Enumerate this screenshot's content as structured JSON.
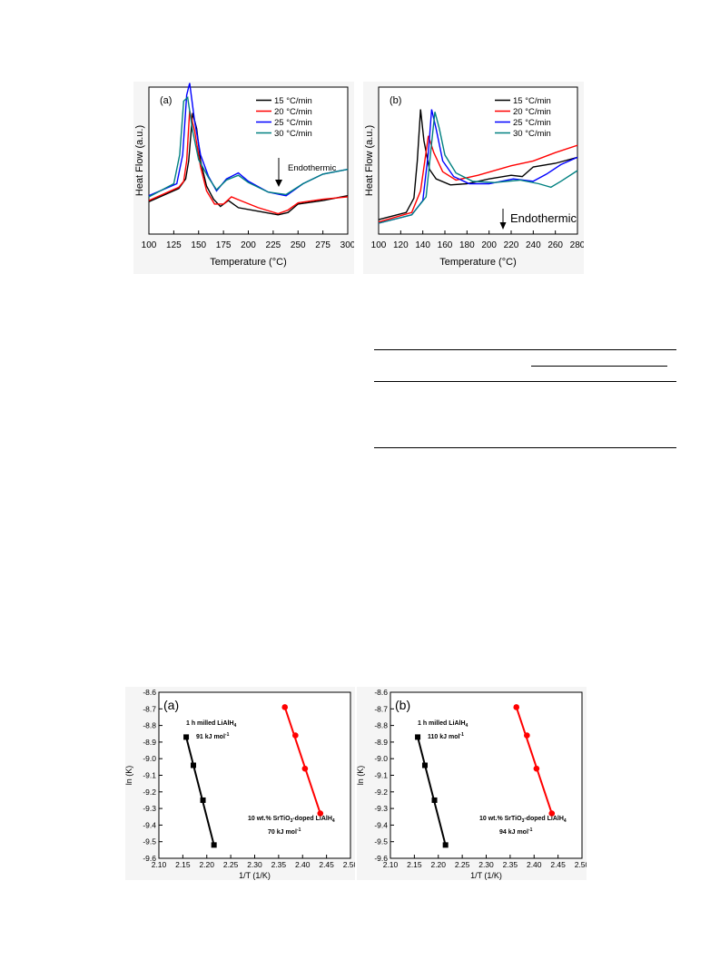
{
  "figure_dsc": {
    "panels": [
      {
        "id": "a",
        "label": "(a)",
        "xlabel": "Temperature (°C)",
        "ylabel": "Heat Flow (a.u.)",
        "annotation": "Endothermic",
        "xticks": [
          "100",
          "125",
          "150",
          "175",
          "200",
          "225",
          "250",
          "275",
          "300"
        ],
        "xlim": [
          100,
          300
        ],
        "legend": [
          "15 °C/min",
          "20 °C/min",
          "25 °C/min",
          "30 °C/min"
        ]
      },
      {
        "id": "b",
        "label": "(b)",
        "xlabel": "Temperature (°C)",
        "ylabel": "Heat Flow (a.u.)",
        "annotation": "Endothermic",
        "xticks": [
          "100",
          "120",
          "140",
          "160",
          "180",
          "200",
          "220",
          "240",
          "260",
          "280"
        ],
        "xlim": [
          100,
          280
        ],
        "legend": [
          "15 °C/min",
          "20 °C/min",
          "25 °C/min",
          "30 °C/min"
        ]
      }
    ]
  },
  "figure_kissinger": {
    "panels": [
      {
        "id": "a",
        "label": "(a)",
        "xlabel": "1/T (1/K)",
        "ylabel": "ln (K)",
        "xticks": [
          "2.10",
          "2.15",
          "2.20",
          "2.25",
          "2.30",
          "2.35",
          "2.40",
          "2.45",
          "2.50"
        ],
        "yticks": [
          "-8.6",
          "-8.7",
          "-8.8",
          "-8.9",
          "-9.0",
          "-9.1",
          "-9.2",
          "-9.3",
          "-9.4",
          "-9.5",
          "-9.6"
        ],
        "text_upper_1": "1 h milled LiAlH",
        "text_upper_sub": "4",
        "text_upper_2": "91 kJ mol",
        "text_upper_sup": "-1",
        "text_lower_1a": "10 wt.% SrTiO",
        "text_lower_sub1": "3",
        "text_lower_1b": "-doped LiAlH",
        "text_lower_sub2": "4",
        "text_lower_2": "70 kJ mol",
        "text_lower_sup": "-1"
      },
      {
        "id": "b",
        "label": "(b)",
        "xlabel": "1/T (1/K)",
        "ylabel": "ln (K)",
        "xticks": [
          "2.10",
          "2.15",
          "2.20",
          "2.25",
          "2.30",
          "2.35",
          "2.40",
          "2.45",
          "2.50"
        ],
        "yticks": [
          "-8.6",
          "-8.7",
          "-8.8",
          "-8.9",
          "-9.0",
          "-9.1",
          "-9.2",
          "-9.3",
          "-9.4",
          "-9.5",
          "-9.6"
        ],
        "text_upper_1": "1 h milled LiAlH",
        "text_upper_sub": "4",
        "text_upper_2": "110 kJ mol",
        "text_upper_sup": "-1",
        "text_lower_1a": "10 wt.% SrTiO",
        "text_lower_sub1": "3",
        "text_lower_1b": "-doped LiAlH",
        "text_lower_sub2": "4",
        "text_lower_2": "94 kJ mol",
        "text_lower_sup": "-1"
      }
    ]
  },
  "chart_data": [
    {
      "type": "scatter",
      "title": "",
      "xlabel": "1/T (1/K)",
      "ylabel": "ln (K)",
      "xlim": [
        2.1,
        2.5
      ],
      "ylim": [
        -9.6,
        -8.6
      ],
      "series": [
        {
          "name": "1 h milled LiAlH4",
          "color": "#000000",
          "marker": "square",
          "points": [
            [
              2.157,
              -8.87
            ],
            [
              2.172,
              -9.04
            ],
            [
              2.192,
              -9.25
            ],
            [
              2.215,
              -9.52
            ]
          ]
        },
        {
          "name": "10 wt.% SrTiO3-doped LiAlH4",
          "color": "#ff0000",
          "marker": "circle",
          "points": [
            [
              2.363,
              -8.69
            ],
            [
              2.385,
              -8.86
            ],
            [
              2.405,
              -9.06
            ],
            [
              2.437,
              -9.33
            ]
          ]
        }
      ]
    },
    {
      "type": "scatter",
      "title": "",
      "xlabel": "1/T (1/K)",
      "ylabel": "ln (K)",
      "xlim": [
        2.1,
        2.5
      ],
      "ylim": [
        -9.6,
        -8.6
      ],
      "series": [
        {
          "name": "1 h milled LiAlH4",
          "color": "#000000",
          "marker": "square",
          "points": [
            [
              2.157,
              -8.87
            ],
            [
              2.172,
              -9.04
            ],
            [
              2.192,
              -9.25
            ],
            [
              2.215,
              -9.52
            ]
          ]
        },
        {
          "name": "10 wt.% SrTiO3-doped LiAlH4",
          "color": "#ff0000",
          "marker": "circle",
          "points": [
            [
              2.363,
              -8.69
            ],
            [
              2.385,
              -8.86
            ],
            [
              2.405,
              -9.06
            ],
            [
              2.437,
              -9.33
            ]
          ]
        }
      ]
    },
    {
      "type": "line",
      "title": "",
      "xlabel": "Temperature (°C)",
      "ylabel": "Heat Flow (a.u.)",
      "xlim": [
        100,
        300
      ],
      "series": [
        {
          "name": "15 °C/min",
          "color": "#000000",
          "points": [
            [
              100,
              0.21
            ],
            [
              130,
              0.32
            ],
            [
              137,
              0.4
            ],
            [
              140,
              0.55
            ],
            [
              144,
              0.95
            ],
            [
              148,
              0.82
            ],
            [
              152,
              0.55
            ],
            [
              158,
              0.34
            ],
            [
              165,
              0.23
            ],
            [
              172,
              0.17
            ],
            [
              180,
              0.22
            ],
            [
              190,
              0.16
            ],
            [
              210,
              0.13
            ],
            [
              230,
              0.1
            ],
            [
              240,
              0.12
            ],
            [
              250,
              0.19
            ],
            [
              275,
              0.22
            ],
            [
              300,
              0.26
            ]
          ]
        },
        {
          "name": "20 °C/min",
          "color": "#ff0000",
          "points": [
            [
              100,
              0.22
            ],
            [
              130,
              0.33
            ],
            [
              135,
              0.38
            ],
            [
              138,
              0.55
            ],
            [
              141,
              0.97
            ],
            [
              146,
              0.8
            ],
            [
              152,
              0.5
            ],
            [
              158,
              0.3
            ],
            [
              166,
              0.19
            ],
            [
              175,
              0.19
            ],
            [
              183,
              0.25
            ],
            [
              192,
              0.22
            ],
            [
              210,
              0.16
            ],
            [
              230,
              0.11
            ],
            [
              240,
              0.14
            ],
            [
              250,
              0.2
            ],
            [
              275,
              0.23
            ],
            [
              300,
              0.25
            ]
          ]
        },
        {
          "name": "25 °C/min",
          "color": "#0000ff",
          "points": [
            [
              100,
              0.26
            ],
            [
              128,
              0.36
            ],
            [
              134,
              0.6
            ],
            [
              138,
              1.1
            ],
            [
              141,
              1.2
            ],
            [
              146,
              0.88
            ],
            [
              152,
              0.6
            ],
            [
              160,
              0.42
            ],
            [
              168,
              0.3
            ],
            [
              178,
              0.4
            ],
            [
              190,
              0.45
            ],
            [
              200,
              0.38
            ],
            [
              220,
              0.29
            ],
            [
              238,
              0.26
            ],
            [
              255,
              0.36
            ],
            [
              275,
              0.44
            ],
            [
              300,
              0.48
            ]
          ]
        },
        {
          "name": "30 °C/min",
          "color": "#008080",
          "points": [
            [
              100,
              0.25
            ],
            [
              125,
              0.36
            ],
            [
              131,
              0.6
            ],
            [
              135,
              1.05
            ],
            [
              139,
              1.08
            ],
            [
              144,
              0.8
            ],
            [
              150,
              0.56
            ],
            [
              160,
              0.41
            ],
            [
              168,
              0.31
            ],
            [
              178,
              0.39
            ],
            [
              190,
              0.43
            ],
            [
              200,
              0.37
            ],
            [
              220,
              0.29
            ],
            [
              238,
              0.27
            ],
            [
              255,
              0.36
            ],
            [
              275,
              0.44
            ],
            [
              300,
              0.48
            ]
          ]
        }
      ]
    },
    {
      "type": "line",
      "title": "",
      "xlabel": "Temperature (°C)",
      "ylabel": "Heat Flow (a.u.)",
      "xlim": [
        100,
        280
      ],
      "series": [
        {
          "name": "15 °C/min",
          "color": "#000000",
          "points": [
            [
              100,
              0.06
            ],
            [
              125,
              0.12
            ],
            [
              132,
              0.24
            ],
            [
              135,
              0.55
            ],
            [
              138,
              0.98
            ],
            [
              141,
              0.72
            ],
            [
              146,
              0.48
            ],
            [
              152,
              0.4
            ],
            [
              165,
              0.35
            ],
            [
              180,
              0.36
            ],
            [
              200,
              0.4
            ],
            [
              220,
              0.43
            ],
            [
              230,
              0.42
            ],
            [
              240,
              0.5
            ],
            [
              260,
              0.53
            ],
            [
              280,
              0.58
            ]
          ]
        },
        {
          "name": "20 °C/min",
          "color": "#ff0000",
          "points": [
            [
              100,
              0.04
            ],
            [
              130,
              0.12
            ],
            [
              138,
              0.3
            ],
            [
              145,
              0.76
            ],
            [
              150,
              0.62
            ],
            [
              158,
              0.46
            ],
            [
              170,
              0.39
            ],
            [
              190,
              0.43
            ],
            [
              220,
              0.51
            ],
            [
              240,
              0.55
            ],
            [
              260,
              0.62
            ],
            [
              280,
              0.68
            ]
          ]
        },
        {
          "name": "25 °C/min",
          "color": "#0000ff",
          "points": [
            [
              100,
              0.03
            ],
            [
              130,
              0.1
            ],
            [
              140,
              0.22
            ],
            [
              145,
              0.62
            ],
            [
              148,
              0.98
            ],
            [
              152,
              0.82
            ],
            [
              158,
              0.55
            ],
            [
              168,
              0.42
            ],
            [
              182,
              0.36
            ],
            [
              200,
              0.36
            ],
            [
              222,
              0.4
            ],
            [
              240,
              0.38
            ],
            [
              252,
              0.44
            ],
            [
              265,
              0.52
            ],
            [
              280,
              0.58
            ]
          ]
        },
        {
          "name": "30 °C/min",
          "color": "#008080",
          "points": [
            [
              100,
              0.03
            ],
            [
              130,
              0.1
            ],
            [
              143,
              0.25
            ],
            [
              148,
              0.7
            ],
            [
              151,
              0.96
            ],
            [
              155,
              0.82
            ],
            [
              160,
              0.6
            ],
            [
              170,
              0.45
            ],
            [
              185,
              0.38
            ],
            [
              205,
              0.37
            ],
            [
              228,
              0.39
            ],
            [
              245,
              0.36
            ],
            [
              256,
              0.33
            ],
            [
              265,
              0.38
            ],
            [
              280,
              0.47
            ]
          ]
        }
      ]
    }
  ]
}
